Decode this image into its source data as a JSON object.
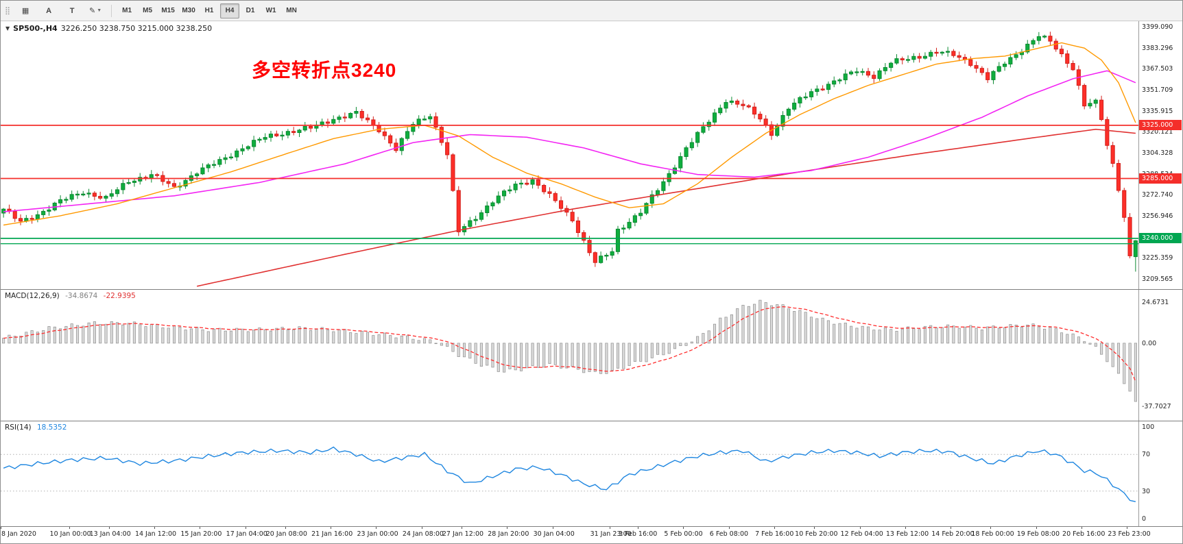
{
  "toolbar": {
    "buttons": [
      {
        "name": "grid",
        "label": "▦"
      },
      {
        "name": "cursor-a",
        "label": "A"
      },
      {
        "name": "text-tool",
        "label": "T"
      },
      {
        "name": "draw-tools",
        "label": "✎",
        "dropdown": true
      }
    ],
    "timeframes": [
      "M1",
      "M5",
      "M15",
      "M30",
      "H1",
      "H4",
      "D1",
      "W1",
      "MN"
    ],
    "active_timeframe": "H4"
  },
  "price_chart": {
    "symbol": "SP500-,H4",
    "ohlc_text": "3226.250 3238.750 3215.000 3238.250",
    "annotation": {
      "text": "多空转折点3240",
      "color": "#ff0000"
    },
    "y_ticks": [
      "3399.090",
      "3383.296",
      "3367.503",
      "3351.709",
      "3335.915",
      "3320.121",
      "3304.328",
      "3288.534",
      "3272.740",
      "3256.946",
      "3241.153",
      "3225.359",
      "3209.565"
    ],
    "levels": [
      {
        "price": 3325.0,
        "badge": "3325.000",
        "color": "#f42e2a",
        "double": false
      },
      {
        "price": 3285.0,
        "badge": "3285.000",
        "color": "#f42e2a",
        "double": false
      },
      {
        "price": 3240.0,
        "badge": "3240.000",
        "color": "#00a651",
        "double": true,
        "second_price": 3236.0
      }
    ],
    "colors": {
      "up_fill": "#0fae3e",
      "up_stroke": "#0b8a31",
      "down_fill": "#fd2f29",
      "down_stroke": "#d21f1a",
      "ma_fast": "#ff9900",
      "ma_mid": "#f324f3",
      "ma_slow": "#e03030"
    }
  },
  "macd": {
    "label": "MACD(12,26,9)",
    "main_value": "-34.8674",
    "signal_value": "-22.9395",
    "y_ticks": [
      "24.6731",
      "0.00",
      "-37.7027"
    ],
    "y_tick_values": [
      24.6731,
      0,
      -37.7027
    ],
    "colors": {
      "hist_fill": "#d9d9d9",
      "hist_stroke": "#8f8f8f",
      "signal": "#ff2d2d"
    }
  },
  "rsi": {
    "label": "RSI(14)",
    "value": "18.5352",
    "y_ticks": [
      "100",
      "70",
      "30",
      "0"
    ],
    "y_tick_values": [
      100,
      70,
      30,
      0
    ],
    "level_lines": [
      70,
      30
    ],
    "colors": {
      "line": "#1e86e0",
      "levels": "#b0b0b0"
    }
  },
  "time_axis": {
    "labels": [
      {
        "t": "8 Jan 2020",
        "bar": 0
      },
      {
        "t": "10 Jan 00:00",
        "bar": 12
      },
      {
        "t": "13 Jan 04:00",
        "bar": 19
      },
      {
        "t": "14 Jan 12:00",
        "bar": 27
      },
      {
        "t": "15 Jan 20:00",
        "bar": 35
      },
      {
        "t": "17 Jan 04:00",
        "bar": 43
      },
      {
        "t": "20 Jan 08:00",
        "bar": 50
      },
      {
        "t": "21 Jan 16:00",
        "bar": 58
      },
      {
        "t": "23 Jan 00:00",
        "bar": 66
      },
      {
        "t": "24 Jan 08:00",
        "bar": 74
      },
      {
        "t": "27 Jan 12:00",
        "bar": 81
      },
      {
        "t": "28 Jan 20:00",
        "bar": 89
      },
      {
        "t": "30 Jan 04:00",
        "bar": 97
      },
      {
        "t": "31 Jan 23:00",
        "bar": 107
      },
      {
        "t": "3 Feb 16:00",
        "bar": 112
      },
      {
        "t": "5 Feb 00:00",
        "bar": 120
      },
      {
        "t": "6 Feb 08:00",
        "bar": 128
      },
      {
        "t": "7 Feb 16:00",
        "bar": 136
      },
      {
        "t": "10 Feb 20:00",
        "bar": 143
      },
      {
        "t": "12 Feb 04:00",
        "bar": 151
      },
      {
        "t": "13 Feb 12:00",
        "bar": 159
      },
      {
        "t": "14 Feb 20:00",
        "bar": 167
      },
      {
        "t": "18 Feb 00:00",
        "bar": 174
      },
      {
        "t": "19 Feb 08:00",
        "bar": 182
      },
      {
        "t": "20 Feb 16:00",
        "bar": 190
      },
      {
        "t": "23 Feb 23:00",
        "bar": 198
      }
    ]
  },
  "chart_data": {
    "type": "candlestick",
    "price": {
      "bars": 200,
      "axis_max": 3399.09,
      "axis_min": 3209.565,
      "last": [
        3226.25,
        3238.75,
        3215.0,
        3238.25
      ],
      "close_anchors": [
        [
          0,
          3262
        ],
        [
          3,
          3252
        ],
        [
          6,
          3258
        ],
        [
          10,
          3268
        ],
        [
          14,
          3275
        ],
        [
          18,
          3270
        ],
        [
          22,
          3283
        ],
        [
          26,
          3288
        ],
        [
          30,
          3278
        ],
        [
          34,
          3290
        ],
        [
          38,
          3298
        ],
        [
          42,
          3308
        ],
        [
          46,
          3316
        ],
        [
          50,
          3320
        ],
        [
          54,
          3323
        ],
        [
          58,
          3330
        ],
        [
          62,
          3334
        ],
        [
          66,
          3322
        ],
        [
          69,
          3307
        ],
        [
          72,
          3326
        ],
        [
          75,
          3333
        ],
        [
          78,
          3303
        ],
        [
          80,
          3245
        ],
        [
          83,
          3256
        ],
        [
          86,
          3268
        ],
        [
          90,
          3280
        ],
        [
          93,
          3284
        ],
        [
          96,
          3272
        ],
        [
          100,
          3254
        ],
        [
          104,
          3222
        ],
        [
          107,
          3230
        ],
        [
          108,
          3246
        ],
        [
          112,
          3260
        ],
        [
          116,
          3282
        ],
        [
          120,
          3308
        ],
        [
          124,
          3328
        ],
        [
          127,
          3344
        ],
        [
          130,
          3340
        ],
        [
          133,
          3330
        ],
        [
          135,
          3319
        ],
        [
          138,
          3338
        ],
        [
          142,
          3350
        ],
        [
          146,
          3358
        ],
        [
          150,
          3366
        ],
        [
          153,
          3362
        ],
        [
          156,
          3372
        ],
        [
          160,
          3376
        ],
        [
          164,
          3380
        ],
        [
          167,
          3378
        ],
        [
          170,
          3372
        ],
        [
          173,
          3360
        ],
        [
          176,
          3372
        ],
        [
          179,
          3382
        ],
        [
          182,
          3392
        ],
        [
          184,
          3388
        ],
        [
          186,
          3378
        ],
        [
          188,
          3368
        ],
        [
          190,
          3340
        ],
        [
          192,
          3342
        ],
        [
          193,
          3330
        ],
        [
          194,
          3310
        ],
        [
          195,
          3296
        ],
        [
          196,
          3278
        ],
        [
          197,
          3256
        ],
        [
          198,
          3226
        ],
        [
          199,
          3238.25
        ]
      ],
      "ma_fast_anchors": [
        [
          0,
          3250
        ],
        [
          10,
          3257
        ],
        [
          20,
          3266
        ],
        [
          30,
          3278
        ],
        [
          40,
          3290
        ],
        [
          50,
          3304
        ],
        [
          58,
          3315
        ],
        [
          66,
          3322
        ],
        [
          74,
          3325
        ],
        [
          80,
          3317
        ],
        [
          86,
          3301
        ],
        [
          92,
          3289
        ],
        [
          98,
          3281
        ],
        [
          104,
          3271
        ],
        [
          110,
          3263
        ],
        [
          116,
          3266
        ],
        [
          122,
          3281
        ],
        [
          128,
          3301
        ],
        [
          134,
          3319
        ],
        [
          140,
          3333
        ],
        [
          146,
          3345
        ],
        [
          152,
          3355
        ],
        [
          158,
          3363
        ],
        [
          164,
          3371
        ],
        [
          170,
          3375
        ],
        [
          176,
          3377
        ],
        [
          182,
          3383
        ],
        [
          186,
          3387
        ],
        [
          190,
          3383
        ],
        [
          193,
          3374
        ],
        [
          196,
          3357
        ],
        [
          199,
          3327
        ]
      ],
      "ma_mid_anchors": [
        [
          0,
          3260
        ],
        [
          15,
          3266
        ],
        [
          30,
          3272
        ],
        [
          45,
          3282
        ],
        [
          60,
          3296
        ],
        [
          72,
          3312
        ],
        [
          82,
          3318
        ],
        [
          92,
          3316
        ],
        [
          102,
          3308
        ],
        [
          112,
          3296
        ],
        [
          122,
          3288
        ],
        [
          132,
          3286
        ],
        [
          142,
          3291
        ],
        [
          152,
          3301
        ],
        [
          162,
          3315
        ],
        [
          172,
          3331
        ],
        [
          180,
          3347
        ],
        [
          188,
          3360
        ],
        [
          194,
          3366
        ],
        [
          199,
          3357
        ]
      ],
      "ma_slow_anchors": [
        [
          34,
          3204
        ],
        [
          60,
          3228
        ],
        [
          80,
          3246
        ],
        [
          100,
          3262
        ],
        [
          120,
          3276
        ],
        [
          140,
          3290
        ],
        [
          160,
          3303
        ],
        [
          180,
          3315
        ],
        [
          192,
          3322
        ],
        [
          199,
          3319
        ]
      ]
    },
    "macd": {
      "axis_max": 27,
      "axis_min": -41,
      "last_main": -34.8674,
      "last_signal": -22.9395,
      "anchors": [
        [
          0,
          3
        ],
        [
          8,
          9
        ],
        [
          16,
          12
        ],
        [
          22,
          12
        ],
        [
          28,
          10
        ],
        [
          36,
          8
        ],
        [
          44,
          8
        ],
        [
          52,
          9
        ],
        [
          58,
          8
        ],
        [
          64,
          6
        ],
        [
          70,
          4
        ],
        [
          76,
          1
        ],
        [
          80,
          -7
        ],
        [
          84,
          -13
        ],
        [
          88,
          -17
        ],
        [
          92,
          -15
        ],
        [
          96,
          -13
        ],
        [
          100,
          -15
        ],
        [
          104,
          -18
        ],
        [
          107,
          -17
        ],
        [
          110,
          -13
        ],
        [
          114,
          -9
        ],
        [
          118,
          -4
        ],
        [
          122,
          3
        ],
        [
          126,
          14
        ],
        [
          130,
          22
        ],
        [
          133,
          24.7
        ],
        [
          136,
          23
        ],
        [
          140,
          19
        ],
        [
          144,
          14
        ],
        [
          148,
          11
        ],
        [
          152,
          9
        ],
        [
          156,
          8
        ],
        [
          160,
          9
        ],
        [
          164,
          10
        ],
        [
          168,
          10
        ],
        [
          172,
          9
        ],
        [
          176,
          10
        ],
        [
          180,
          11
        ],
        [
          184,
          9
        ],
        [
          187,
          6
        ],
        [
          190,
          2
        ],
        [
          192,
          -3
        ],
        [
          194,
          -10
        ],
        [
          196,
          -19
        ],
        [
          198,
          -28
        ],
        [
          199,
          -34.87
        ]
      ]
    },
    "rsi": {
      "axis_max": 100,
      "axis_min": 0,
      "last": 18.5352,
      "anchors": [
        [
          0,
          55
        ],
        [
          6,
          60
        ],
        [
          12,
          64
        ],
        [
          18,
          66
        ],
        [
          24,
          60
        ],
        [
          30,
          63
        ],
        [
          36,
          68
        ],
        [
          42,
          72
        ],
        [
          48,
          74
        ],
        [
          54,
          72
        ],
        [
          58,
          76
        ],
        [
          62,
          70
        ],
        [
          66,
          62
        ],
        [
          70,
          66
        ],
        [
          74,
          70
        ],
        [
          78,
          52
        ],
        [
          82,
          38
        ],
        [
          86,
          46
        ],
        [
          90,
          54
        ],
        [
          94,
          56
        ],
        [
          98,
          48
        ],
        [
          102,
          38
        ],
        [
          106,
          32
        ],
        [
          110,
          48
        ],
        [
          114,
          55
        ],
        [
          118,
          62
        ],
        [
          122,
          68
        ],
        [
          126,
          72
        ],
        [
          130,
          74
        ],
        [
          134,
          62
        ],
        [
          138,
          68
        ],
        [
          142,
          72
        ],
        [
          146,
          74
        ],
        [
          150,
          72
        ],
        [
          154,
          68
        ],
        [
          158,
          72
        ],
        [
          162,
          74
        ],
        [
          166,
          73
        ],
        [
          170,
          66
        ],
        [
          174,
          60
        ],
        [
          178,
          68
        ],
        [
          182,
          74
        ],
        [
          185,
          70
        ],
        [
          188,
          60
        ],
        [
          190,
          52
        ],
        [
          192,
          50
        ],
        [
          194,
          42
        ],
        [
          196,
          32
        ],
        [
          198,
          22
        ],
        [
          199,
          18.54
        ]
      ]
    }
  }
}
